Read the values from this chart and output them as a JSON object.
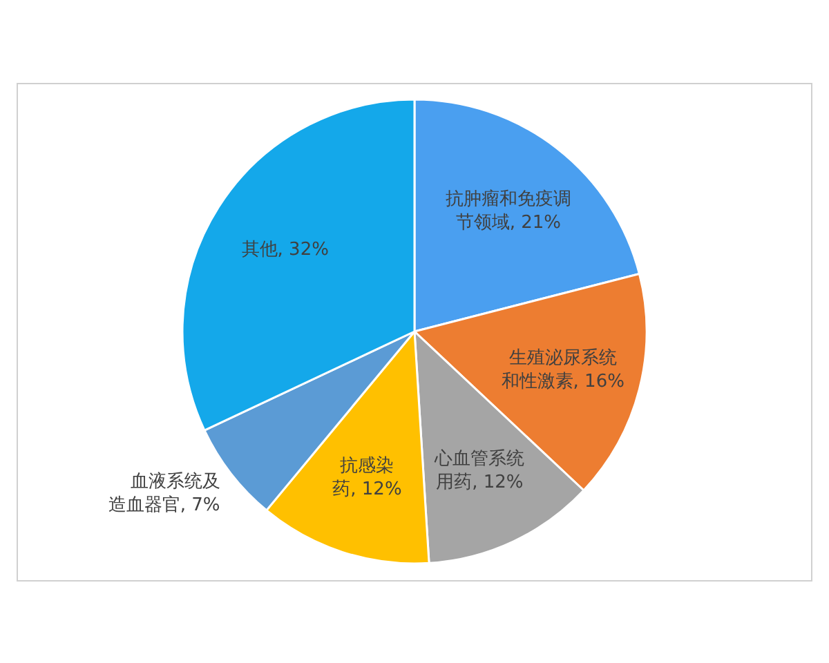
{
  "chart_data": {
    "type": "pie",
    "categories": [
      "抗肿瘤和免疫调节领域",
      "生殖泌尿系统和性激素",
      "心血管系统用药",
      "抗感染药",
      "血液系统及造血器官",
      "其他"
    ],
    "values": [
      21,
      16,
      12,
      12,
      7,
      32
    ],
    "colors": [
      "#4a9ff0",
      "#ed7d31",
      "#a5a5a5",
      "#ffc000",
      "#5b9bd5",
      "#14a8ea"
    ],
    "value_labels": [
      "21%",
      "16%",
      "12%",
      "12%",
      "7%",
      "32%"
    ]
  }
}
